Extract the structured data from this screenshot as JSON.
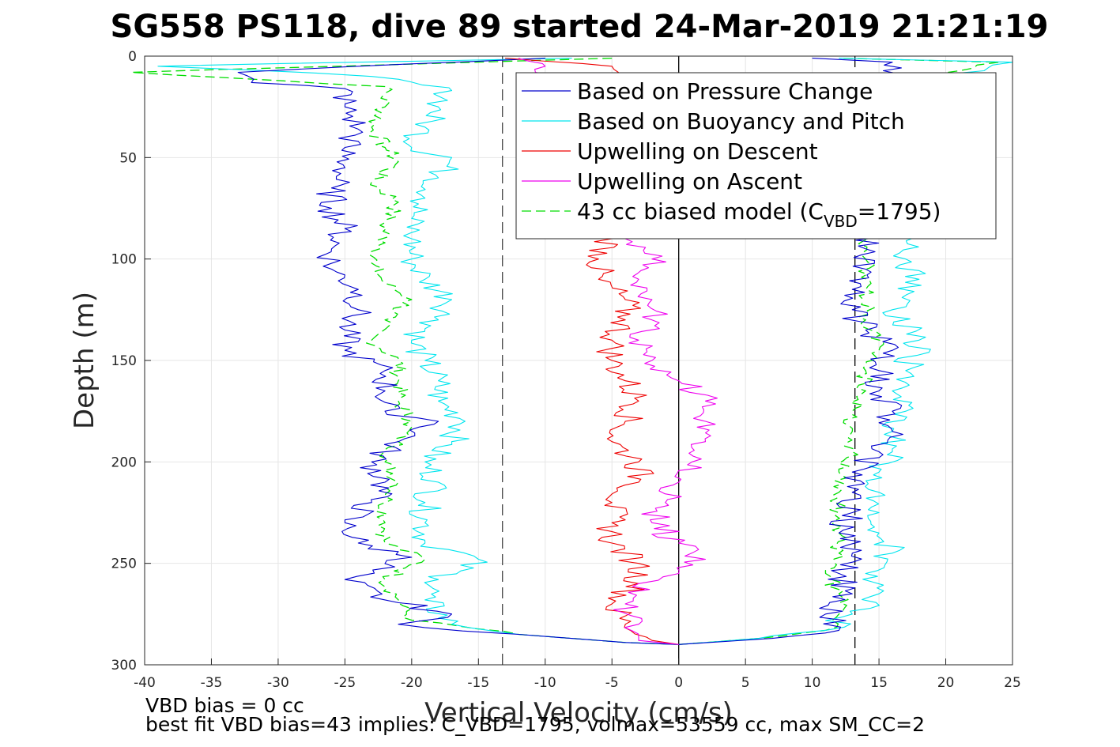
{
  "chart_data": {
    "type": "line",
    "title": "SG558 PS118, dive 89 started 24-Mar-2019 21:21:19",
    "xlabel": "Vertical Velocity (cm/s)",
    "ylabel": "Depth (m)",
    "xlim": [
      -40,
      25
    ],
    "ylim": [
      300,
      0
    ],
    "y_reversed": true,
    "grid": true,
    "xticks": [
      -40,
      -35,
      -30,
      -25,
      -20,
      -15,
      -10,
      -5,
      0,
      5,
      10,
      15,
      20,
      25
    ],
    "yticks": [
      0,
      50,
      100,
      150,
      200,
      250,
      300
    ],
    "legend_position": "top-right",
    "legend": [
      {
        "label": "Based on Pressure Change",
        "color": "#0000cc",
        "style": "solid"
      },
      {
        "label": "Based on Buoyancy and Pitch",
        "color": "#00e5ee",
        "style": "solid"
      },
      {
        "label": "Upwelling on Descent",
        "color": "#ee0000",
        "style": "solid"
      },
      {
        "label": "Upwelling on Ascent",
        "color": "#ee00ee",
        "style": "solid"
      },
      {
        "label_prefix": "43 cc biased model (C",
        "label_sub": "VBD",
        "label_suffix": "=1795)",
        "color": "#00dd00",
        "style": "dashed"
      }
    ],
    "reference_lines": [
      {
        "x": -13.2,
        "style": "dashed",
        "color": "#444444"
      },
      {
        "x": 13.2,
        "style": "dashed",
        "color": "#000000"
      },
      {
        "x": 0,
        "style": "solid",
        "color": "#000000"
      }
    ],
    "series": [
      {
        "name": "Based on Pressure Change",
        "color": "#0000cc",
        "style": "solid",
        "descent": [
          [
            -10,
            1
          ],
          [
            -33,
            8
          ],
          [
            -32,
            13
          ],
          [
            -25,
            16
          ],
          [
            -25,
            25
          ],
          [
            -24,
            36
          ],
          [
            -25,
            45
          ],
          [
            -25,
            55
          ],
          [
            -26,
            65
          ],
          [
            -26,
            75
          ],
          [
            -25,
            85
          ],
          [
            -26,
            95
          ],
          [
            -26,
            105
          ],
          [
            -24,
            115
          ],
          [
            -24,
            125
          ],
          [
            -25,
            135
          ],
          [
            -25,
            145
          ],
          [
            -22,
            155
          ],
          [
            -22,
            165
          ],
          [
            -22,
            175
          ],
          [
            -18,
            180
          ],
          [
            -21,
            190
          ],
          [
            -23,
            200
          ],
          [
            -22,
            210
          ],
          [
            -23,
            220
          ],
          [
            -25,
            230
          ],
          [
            -24,
            240
          ],
          [
            -20,
            247
          ],
          [
            -25,
            258
          ],
          [
            -22,
            268
          ],
          [
            -17,
            275
          ],
          [
            -21,
            280
          ],
          [
            -12,
            285
          ],
          [
            -4,
            289
          ],
          [
            0,
            290
          ]
        ],
        "ascent": [
          [
            0,
            290
          ],
          [
            7,
            287
          ],
          [
            12,
            283
          ],
          [
            11,
            275
          ],
          [
            13,
            265
          ],
          [
            12,
            255
          ],
          [
            13,
            245
          ],
          [
            12,
            235
          ],
          [
            13,
            225
          ],
          [
            13,
            215
          ],
          [
            13,
            205
          ],
          [
            15,
            195
          ],
          [
            16,
            185
          ],
          [
            16,
            175
          ],
          [
            15,
            165
          ],
          [
            15,
            155
          ],
          [
            16,
            145
          ],
          [
            14,
            135
          ],
          [
            13,
            125
          ],
          [
            13,
            115
          ],
          [
            14,
            105
          ],
          [
            14,
            95
          ],
          [
            14,
            85
          ],
          [
            16,
            75
          ],
          [
            15,
            60
          ],
          [
            15,
            40
          ],
          [
            15,
            20
          ],
          [
            15,
            10
          ],
          [
            16,
            3
          ],
          [
            10,
            1
          ]
        ]
      },
      {
        "name": "Based on Buoyancy and Pitch",
        "color": "#00e5ee",
        "style": "solid",
        "descent": [
          [
            -8,
            1
          ],
          [
            -39,
            5
          ],
          [
            -23,
            10
          ],
          [
            -17,
            17
          ],
          [
            -18,
            25
          ],
          [
            -19,
            35
          ],
          [
            -20,
            45
          ],
          [
            -17,
            50
          ],
          [
            -18,
            60
          ],
          [
            -19,
            70
          ],
          [
            -20,
            80
          ],
          [
            -20,
            90
          ],
          [
            -20,
            100
          ],
          [
            -19,
            110
          ],
          [
            -17,
            120
          ],
          [
            -18,
            130
          ],
          [
            -20,
            140
          ],
          [
            -19,
            150
          ],
          [
            -18,
            160
          ],
          [
            -18,
            170
          ],
          [
            -16,
            180
          ],
          [
            -17,
            190
          ],
          [
            -19,
            200
          ],
          [
            -18,
            210
          ],
          [
            -19,
            220
          ],
          [
            -19,
            230
          ],
          [
            -19,
            240
          ],
          [
            -15,
            248
          ],
          [
            -18,
            258
          ],
          [
            -19,
            268
          ],
          [
            -17,
            280
          ],
          [
            -12,
            285
          ],
          [
            -4,
            289
          ],
          [
            0,
            290
          ]
        ],
        "ascent": [
          [
            0,
            290
          ],
          [
            6,
            287
          ],
          [
            11,
            283
          ],
          [
            13,
            275
          ],
          [
            15,
            265
          ],
          [
            14,
            255
          ],
          [
            16,
            245
          ],
          [
            15,
            235
          ],
          [
            15,
            225
          ],
          [
            15,
            215
          ],
          [
            15,
            205
          ],
          [
            16,
            195
          ],
          [
            16,
            185
          ],
          [
            17,
            175
          ],
          [
            16,
            165
          ],
          [
            17,
            155
          ],
          [
            18,
            140
          ],
          [
            16,
            125
          ],
          [
            18,
            110
          ],
          [
            17,
            100
          ],
          [
            17,
            85
          ],
          [
            18,
            60
          ],
          [
            17,
            40
          ],
          [
            18,
            20
          ],
          [
            20,
            10
          ],
          [
            25,
            3
          ],
          [
            12,
            1
          ]
        ]
      },
      {
        "name": "Upwelling on Descent",
        "color": "#ee0000",
        "style": "solid",
        "descent": [
          [
            -13,
            1
          ],
          [
            -5,
            5
          ],
          [
            -5,
            90
          ],
          [
            -6,
            100
          ],
          [
            -6,
            110
          ],
          [
            -4,
            120
          ],
          [
            -4,
            130
          ],
          [
            -5,
            140
          ],
          [
            -5,
            150
          ],
          [
            -4,
            160
          ],
          [
            -3,
            170
          ],
          [
            -4,
            180
          ],
          [
            -5,
            190
          ],
          [
            -3,
            200
          ],
          [
            -3,
            210
          ],
          [
            -5,
            220
          ],
          [
            -5,
            230
          ],
          [
            -5,
            240
          ],
          [
            -3,
            250
          ],
          [
            -3,
            260
          ],
          [
            -5,
            270
          ],
          [
            -4,
            280
          ],
          [
            -2,
            288
          ],
          [
            0,
            290
          ]
        ]
      },
      {
        "name": "Upwelling on Ascent",
        "color": "#ee00ee",
        "style": "solid",
        "ascent": [
          [
            0,
            290
          ],
          [
            -3,
            288
          ],
          [
            -3,
            280
          ],
          [
            -4,
            270
          ],
          [
            -3,
            260
          ],
          [
            0,
            255
          ],
          [
            2,
            248
          ],
          [
            0,
            240
          ],
          [
            -2,
            230
          ],
          [
            -1,
            220
          ],
          [
            0,
            210
          ],
          [
            1,
            200
          ],
          [
            2,
            190
          ],
          [
            2,
            180
          ],
          [
            2,
            170
          ],
          [
            0,
            160
          ],
          [
            -2,
            150
          ],
          [
            -3,
            140
          ],
          [
            -2,
            130
          ],
          [
            -2,
            120
          ],
          [
            -3,
            110
          ],
          [
            -2,
            100
          ],
          [
            -4,
            90
          ],
          [
            -10,
            5
          ],
          [
            -12,
            1
          ]
        ]
      },
      {
        "name": "43 cc biased model (C_VBD=1795)",
        "color": "#00dd00",
        "style": "dashed",
        "descent": [
          [
            -5,
            1
          ],
          [
            -41,
            8
          ],
          [
            -22,
            15
          ],
          [
            -22,
            25
          ],
          [
            -23,
            35
          ],
          [
            -22,
            45
          ],
          [
            -21,
            52
          ],
          [
            -23,
            62
          ],
          [
            -21,
            72
          ],
          [
            -22,
            82
          ],
          [
            -22,
            92
          ],
          [
            -23,
            102
          ],
          [
            -22,
            112
          ],
          [
            -20,
            120
          ],
          [
            -22,
            130
          ],
          [
            -23,
            140
          ],
          [
            -21,
            150
          ],
          [
            -21,
            160
          ],
          [
            -21,
            170
          ],
          [
            -20,
            180
          ],
          [
            -21,
            190
          ],
          [
            -22,
            200
          ],
          [
            -21,
            210
          ],
          [
            -22,
            220
          ],
          [
            -22,
            230
          ],
          [
            -22,
            240
          ],
          [
            -19,
            248
          ],
          [
            -22,
            258
          ],
          [
            -21,
            268
          ],
          [
            -20,
            278
          ],
          [
            -12,
            285
          ],
          [
            -4,
            289
          ],
          [
            0,
            290
          ]
        ],
        "ascent": [
          [
            0,
            290
          ],
          [
            6,
            287
          ],
          [
            11,
            283
          ],
          [
            12,
            275
          ],
          [
            12,
            265
          ],
          [
            11,
            255
          ],
          [
            12,
            245
          ],
          [
            12,
            235
          ],
          [
            12,
            225
          ],
          [
            12,
            215
          ],
          [
            12,
            205
          ],
          [
            13,
            195
          ],
          [
            13,
            185
          ],
          [
            13,
            175
          ],
          [
            14,
            165
          ],
          [
            14,
            155
          ],
          [
            15,
            145
          ],
          [
            14,
            130
          ],
          [
            14,
            115
          ],
          [
            14,
            100
          ],
          [
            14,
            85
          ],
          [
            15,
            60
          ],
          [
            15,
            40
          ],
          [
            17,
            20
          ],
          [
            18,
            10
          ],
          [
            24,
            3
          ],
          [
            12,
            1
          ]
        ]
      }
    ]
  },
  "footer": {
    "line1": "VBD bias = 0 cc",
    "line2": "best fit VBD bias=43 implies: C_VBD=1795, volmax=53559 cc, max SM_CC=2"
  }
}
